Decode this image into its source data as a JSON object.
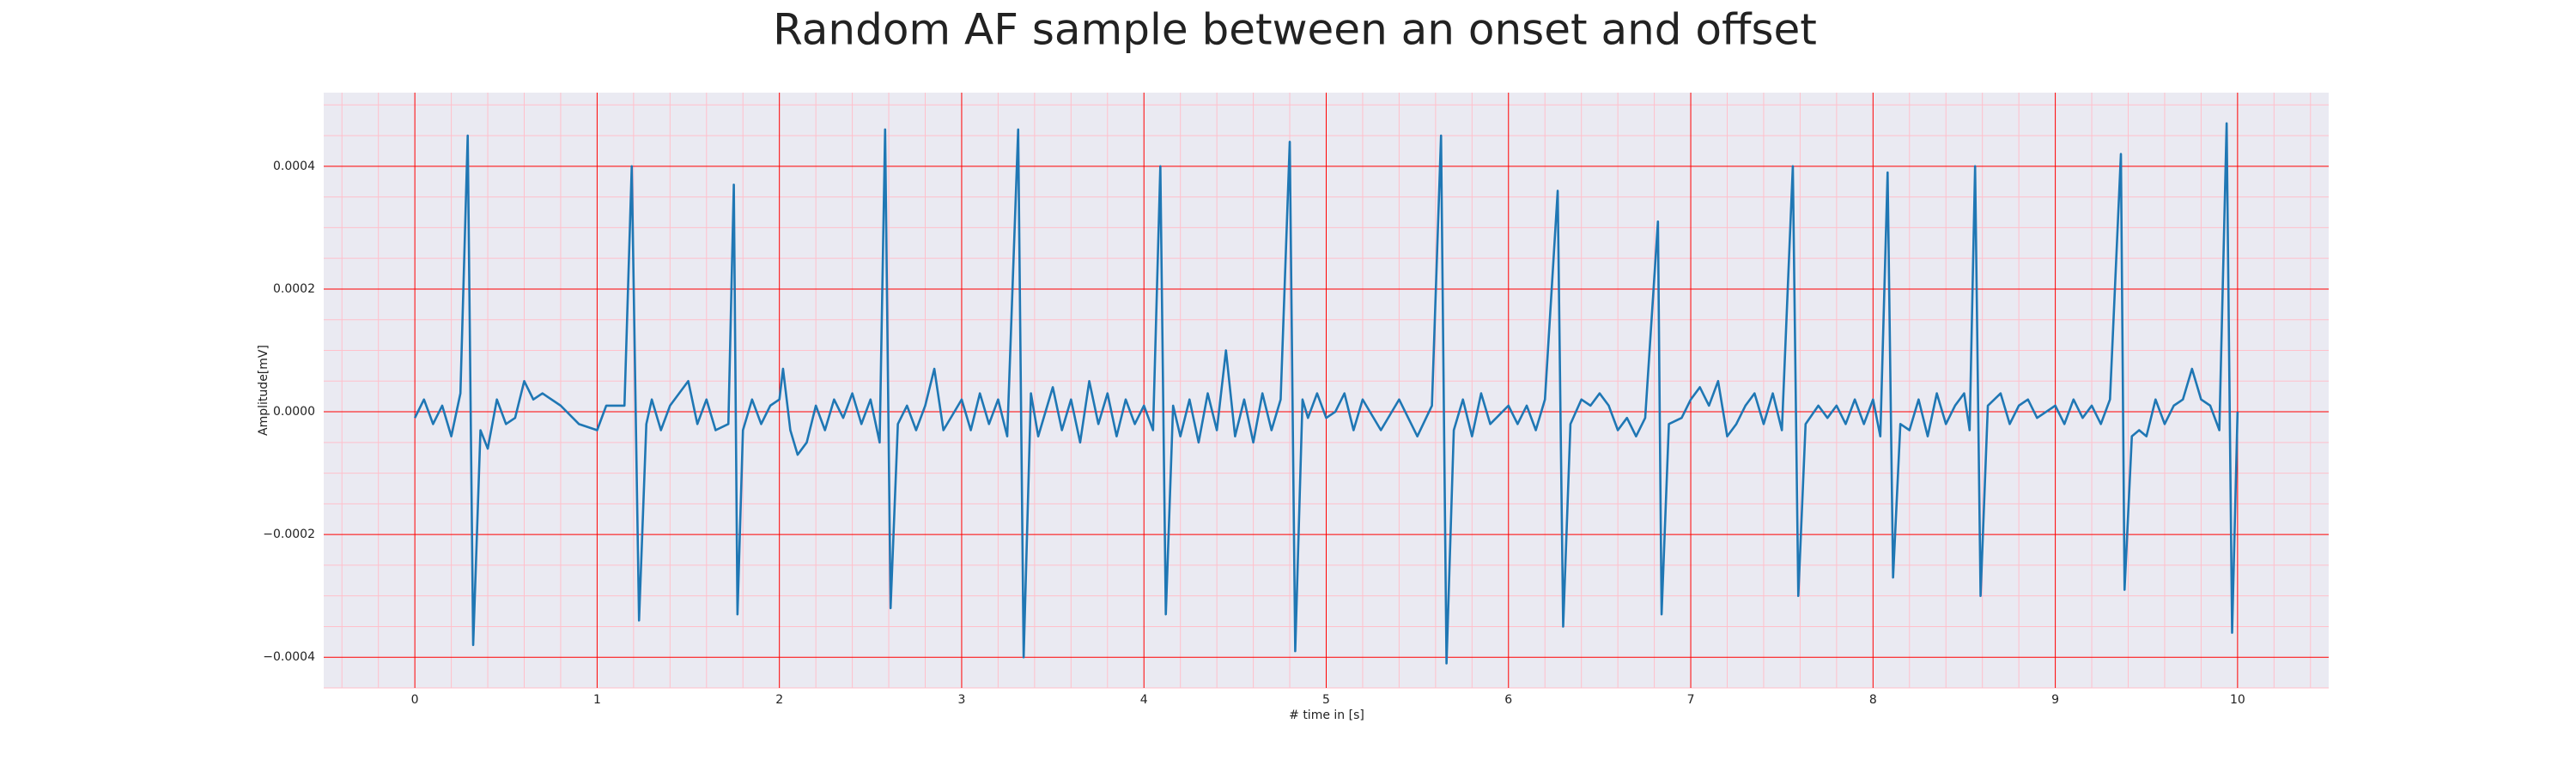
{
  "chart_data": {
    "type": "line",
    "title": "Random AF sample between an onset and offset",
    "xlabel": "# time in [s]",
    "ylabel": "Amplitude[mV]",
    "color": "#1f77b4",
    "grid": true,
    "xlim": [
      -0.5,
      10.5
    ],
    "ylim": [
      -0.00045,
      0.00052
    ],
    "xticks": [
      0,
      1,
      2,
      3,
      4,
      5,
      6,
      7,
      8,
      9,
      10
    ],
    "yticks": [
      {
        "value": -0.0004,
        "label": "−0.0004"
      },
      {
        "value": -0.0002,
        "label": "−0.0002"
      },
      {
        "value": 0,
        "label": "0.0000"
      },
      {
        "value": 0.0002,
        "label": "0.0002"
      },
      {
        "value": 0.0004,
        "label": "0.0004"
      }
    ],
    "xticks_minor": [
      -0.4,
      -0.2,
      0.2,
      0.4,
      0.6,
      0.8,
      1.2,
      1.4,
      1.6,
      1.8,
      2.2,
      2.4,
      2.6,
      2.8,
      3.2,
      3.4,
      3.6,
      3.8,
      4.2,
      4.4,
      4.6,
      4.8,
      5.2,
      5.4,
      5.6,
      5.8,
      6.2,
      6.4,
      6.6,
      6.8,
      7.2,
      7.4,
      7.6,
      7.8,
      8.2,
      8.4,
      8.6,
      8.8,
      9.2,
      9.4,
      9.6,
      9.8,
      10.2,
      10.4
    ],
    "yticks_minor": [
      -0.00045,
      -0.00035,
      -0.0003,
      -0.00025,
      -0.00015,
      -0.0001,
      -5e-05,
      5e-05,
      0.0001,
      0.00015,
      0.00025,
      0.0003,
      0.00035,
      0.00045,
      0.0005
    ],
    "x": [
      0,
      0.05,
      0.1,
      0.15,
      0.2,
      0.25,
      0.29,
      0.32,
      0.36,
      0.4,
      0.45,
      0.5,
      0.55,
      0.6,
      0.65,
      0.7,
      0.8,
      0.9,
      1.0,
      1.05,
      1.15,
      1.19,
      1.23,
      1.27,
      1.3,
      1.35,
      1.4,
      1.5,
      1.55,
      1.6,
      1.65,
      1.72,
      1.75,
      1.77,
      1.8,
      1.85,
      1.9,
      1.95,
      2.0,
      2.02,
      2.06,
      2.1,
      2.15,
      2.2,
      2.25,
      2.3,
      2.35,
      2.4,
      2.45,
      2.5,
      2.55,
      2.58,
      2.61,
      2.65,
      2.7,
      2.75,
      2.8,
      2.85,
      2.9,
      3.0,
      3.05,
      3.1,
      3.15,
      3.2,
      3.25,
      3.31,
      3.34,
      3.38,
      3.42,
      3.5,
      3.55,
      3.6,
      3.65,
      3.7,
      3.75,
      3.8,
      3.85,
      3.9,
      3.95,
      4.0,
      4.05,
      4.09,
      4.12,
      4.16,
      4.2,
      4.25,
      4.3,
      4.35,
      4.4,
      4.45,
      4.5,
      4.55,
      4.6,
      4.65,
      4.7,
      4.75,
      4.8,
      4.83,
      4.87,
      4.9,
      4.95,
      5.0,
      5.05,
      5.1,
      5.15,
      5.2,
      5.3,
      5.4,
      5.5,
      5.58,
      5.63,
      5.66,
      5.7,
      5.75,
      5.8,
      5.85,
      5.9,
      6.0,
      6.05,
      6.1,
      6.15,
      6.2,
      6.27,
      6.3,
      6.34,
      6.4,
      6.45,
      6.5,
      6.55,
      6.6,
      6.65,
      6.7,
      6.75,
      6.82,
      6.84,
      6.88,
      6.95,
      7.0,
      7.05,
      7.1,
      7.15,
      7.2,
      7.25,
      7.3,
      7.35,
      7.4,
      7.45,
      7.5,
      7.56,
      7.59,
      7.63,
      7.7,
      7.75,
      7.8,
      7.85,
      7.9,
      7.95,
      8.0,
      8.04,
      8.08,
      8.11,
      8.15,
      8.2,
      8.25,
      8.3,
      8.35,
      8.4,
      8.45,
      8.5,
      8.53,
      8.56,
      8.59,
      8.63,
      8.7,
      8.75,
      8.8,
      8.85,
      8.9,
      8.95,
      9.0,
      9.05,
      9.1,
      9.15,
      9.2,
      9.25,
      9.3,
      9.36,
      9.38,
      9.42,
      9.46,
      9.5,
      9.55,
      9.6,
      9.65,
      9.7,
      9.75,
      9.8,
      9.85,
      9.9,
      9.94,
      9.97,
      10.0
    ],
    "values": [
      -1e-05,
      2e-05,
      -2e-05,
      1e-05,
      -4e-05,
      3e-05,
      0.00045,
      -0.00038,
      -3e-05,
      -6e-05,
      2e-05,
      -2e-05,
      -1e-05,
      5e-05,
      2e-05,
      3e-05,
      1e-05,
      -2e-05,
      -3e-05,
      1e-05,
      1e-05,
      0.0004,
      -0.00034,
      -2e-05,
      2e-05,
      -3e-05,
      1e-05,
      5e-05,
      -2e-05,
      2e-05,
      -3e-05,
      -2e-05,
      0.00037,
      -0.00033,
      -3e-05,
      2e-05,
      -2e-05,
      1e-05,
      2e-05,
      7e-05,
      -3e-05,
      -7e-05,
      -5e-05,
      1e-05,
      -3e-05,
      2e-05,
      -1e-05,
      3e-05,
      -2e-05,
      2e-05,
      -5e-05,
      0.00046,
      -0.00032,
      -2e-05,
      1e-05,
      -3e-05,
      1e-05,
      7e-05,
      -3e-05,
      2e-05,
      -3e-05,
      3e-05,
      -2e-05,
      2e-05,
      -4e-05,
      0.00046,
      -0.0004,
      3e-05,
      -4e-05,
      4e-05,
      -3e-05,
      2e-05,
      -5e-05,
      5e-05,
      -2e-05,
      3e-05,
      -4e-05,
      2e-05,
      -2e-05,
      1e-05,
      -3e-05,
      0.0004,
      -0.00033,
      1e-05,
      -4e-05,
      2e-05,
      -5e-05,
      3e-05,
      -3e-05,
      0.0001,
      -4e-05,
      2e-05,
      -5e-05,
      3e-05,
      -3e-05,
      2e-05,
      0.00044,
      -0.00039,
      2e-05,
      -1e-05,
      3e-05,
      -1e-05,
      0,
      3e-05,
      -3e-05,
      2e-05,
      -3e-05,
      2e-05,
      -4e-05,
      1e-05,
      0.00045,
      -0.00041,
      -3e-05,
      2e-05,
      -4e-05,
      3e-05,
      -2e-05,
      1e-05,
      -2e-05,
      1e-05,
      -3e-05,
      2e-05,
      0.00036,
      -0.00035,
      -2e-05,
      2e-05,
      1e-05,
      3e-05,
      1e-05,
      -3e-05,
      -1e-05,
      -4e-05,
      -1e-05,
      0.00031,
      -0.00033,
      -2e-05,
      -1e-05,
      2e-05,
      4e-05,
      1e-05,
      5e-05,
      -4e-05,
      -2e-05,
      1e-05,
      3e-05,
      -2e-05,
      3e-05,
      -3e-05,
      0.0004,
      -0.0003,
      -2e-05,
      1e-05,
      -1e-05,
      1e-05,
      -2e-05,
      2e-05,
      -2e-05,
      2e-05,
      -4e-05,
      0.00039,
      -0.00027,
      -2e-05,
      -3e-05,
      2e-05,
      -4e-05,
      3e-05,
      -2e-05,
      1e-05,
      3e-05,
      -3e-05,
      0.0004,
      -0.0003,
      1e-05,
      3e-05,
      -2e-05,
      1e-05,
      2e-05,
      -1e-05,
      0,
      1e-05,
      -2e-05,
      2e-05,
      -1e-05,
      1e-05,
      -2e-05,
      2e-05,
      0.00042,
      -0.00029,
      -4e-05,
      -3e-05,
      -4e-05,
      2e-05,
      -2e-05,
      1e-05,
      2e-05,
      7e-05,
      2e-05,
      1e-05,
      -3e-05,
      0.00047,
      -0.00036,
      0
    ]
  }
}
